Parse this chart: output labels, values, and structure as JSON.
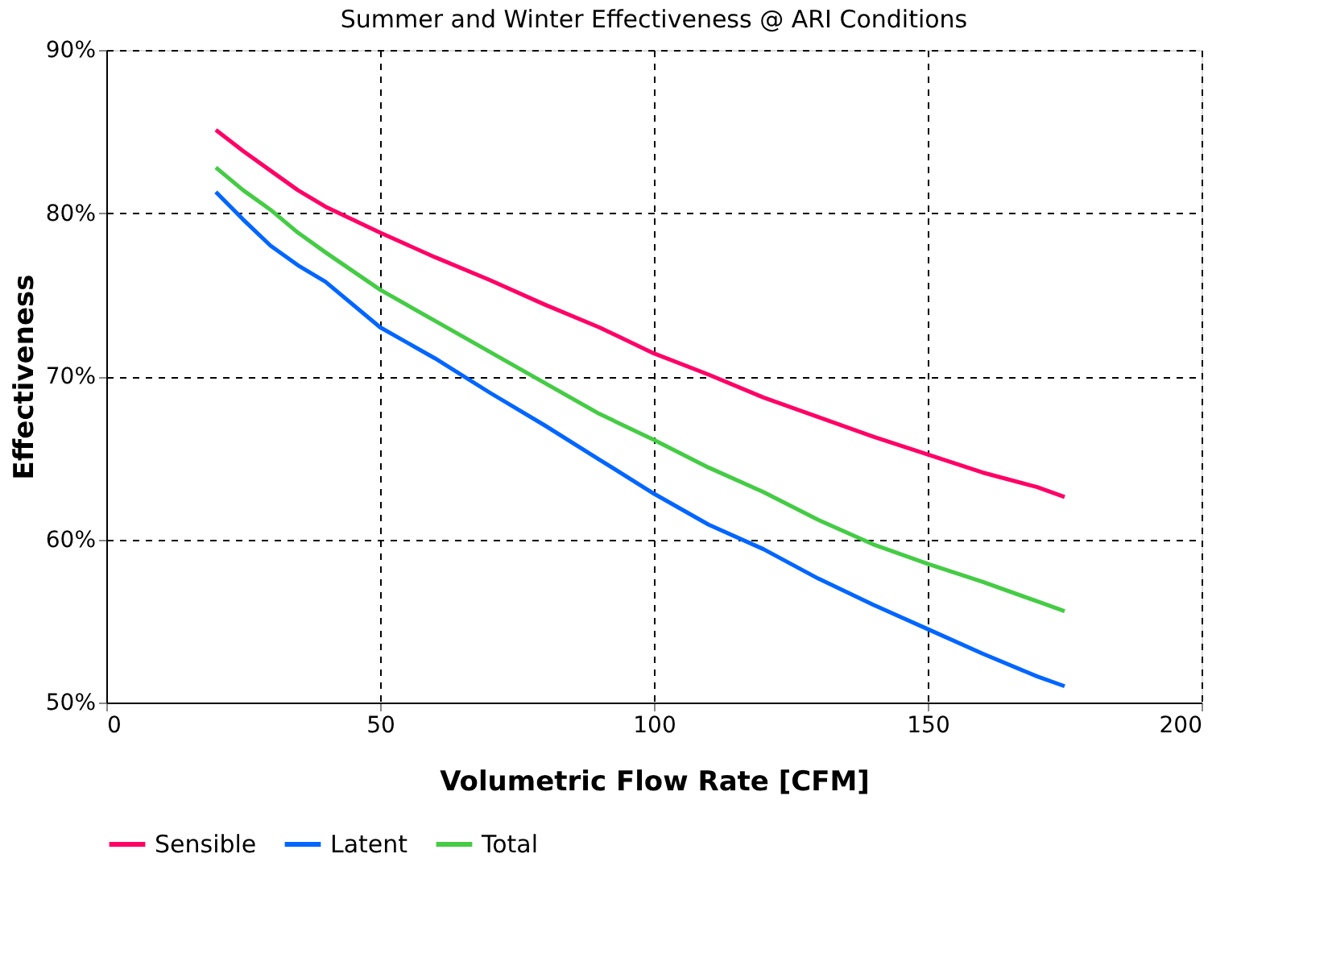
{
  "chart_data": {
    "type": "line",
    "subtitle": "Summer and Winter Effectiveness @ ARI Conditions",
    "xlabel": "Volumetric Flow Rate [CFM]",
    "ylabel": "Effectiveness",
    "x": [
      20,
      25,
      30,
      35,
      40,
      50,
      60,
      70,
      80,
      90,
      100,
      110,
      120,
      130,
      140,
      150,
      160,
      170,
      175
    ],
    "series": [
      {
        "name": "Sensible",
        "color": "#ff0066",
        "values": [
          85.1,
          83.8,
          82.6,
          81.4,
          80.4,
          78.8,
          77.3,
          75.9,
          74.4,
          73.0,
          71.4,
          70.1,
          68.7,
          67.5,
          66.3,
          65.2,
          64.1,
          63.2,
          62.6
        ]
      },
      {
        "name": "Latent",
        "color": "#0066ff",
        "values": [
          81.3,
          79.6,
          78.0,
          76.8,
          75.8,
          73.0,
          71.1,
          69.0,
          67.0,
          64.9,
          62.8,
          60.9,
          59.4,
          57.6,
          56.0,
          54.5,
          53.0,
          51.6,
          51.0
        ]
      },
      {
        "name": "Total",
        "color": "#44cc44",
        "values": [
          82.8,
          81.4,
          80.2,
          78.8,
          77.6,
          75.3,
          73.4,
          71.5,
          69.6,
          67.7,
          66.1,
          64.4,
          62.9,
          61.2,
          59.7,
          58.5,
          57.4,
          56.2,
          55.6
        ]
      }
    ],
    "xlim": [
      0,
      200
    ],
    "xticks": [
      0,
      50,
      100,
      150,
      200
    ],
    "ylim": [
      50,
      90
    ],
    "yticks": [
      {
        "value": 50,
        "label": "50%"
      },
      {
        "value": 60,
        "label": "60%"
      },
      {
        "value": 70,
        "label": "70%"
      },
      {
        "value": 80,
        "label": "80%"
      },
      {
        "value": 90,
        "label": "90%"
      }
    ],
    "grid": true,
    "line_style": "solid",
    "marker": "none",
    "legend": "bottom"
  }
}
